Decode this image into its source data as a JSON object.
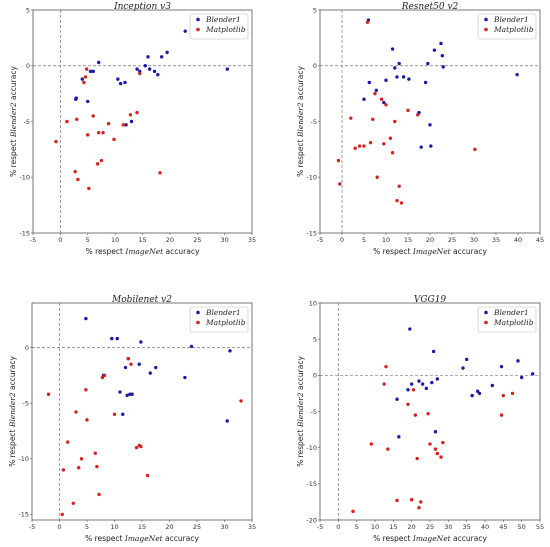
{
  "chart_data": [
    {
      "type": "scatter",
      "title": "Inception v3",
      "xlabel": [
        "% respect ",
        "ImageNet",
        " accuracy"
      ],
      "ylabel": [
        "% respect ",
        "Blender2",
        " accuracy"
      ],
      "xlim": [
        -5,
        35
      ],
      "ylim": [
        -15,
        5
      ],
      "xticks": [
        -5,
        0,
        5,
        10,
        15,
        20,
        25,
        30,
        35
      ],
      "yticks": [
        -15,
        -10,
        -5,
        0,
        5
      ],
      "guides": {
        "x": 0,
        "y": 0
      },
      "legend": "top-right",
      "series": [
        {
          "name": "Blender1",
          "color": "#1a1aa6",
          "points": [
            [
              2.8,
              -3.0
            ],
            [
              2.9,
              -2.9
            ],
            [
              4.0,
              -1.2
            ],
            [
              5.0,
              -3.2
            ],
            [
              5.5,
              -0.5
            ],
            [
              6.0,
              -0.5
            ],
            [
              7.0,
              0.3
            ],
            [
              10.5,
              -1.2
            ],
            [
              11.0,
              -1.6
            ],
            [
              11.8,
              -1.5
            ],
            [
              12.0,
              -5.3
            ],
            [
              13.0,
              -5.0
            ],
            [
              14.0,
              -0.3
            ],
            [
              14.5,
              -0.5
            ],
            [
              15.5,
              0.0
            ],
            [
              16.0,
              0.8
            ],
            [
              16.3,
              -0.3
            ],
            [
              17.2,
              -0.5
            ],
            [
              17.8,
              -0.8
            ],
            [
              18.5,
              0.8
            ],
            [
              19.5,
              1.2
            ],
            [
              22.8,
              3.1
            ],
            [
              30.5,
              -0.3
            ]
          ]
        },
        {
          "name": "Matplotlib",
          "color": "#d42020",
          "points": [
            [
              -0.8,
              -6.8
            ],
            [
              1.2,
              -5.0
            ],
            [
              2.7,
              -9.5
            ],
            [
              3.0,
              -4.8
            ],
            [
              3.2,
              -10.2
            ],
            [
              4.3,
              -1.5
            ],
            [
              4.6,
              -1.0
            ],
            [
              4.8,
              -0.3
            ],
            [
              5.0,
              -6.2
            ],
            [
              5.2,
              -11.0
            ],
            [
              6.0,
              -4.5
            ],
            [
              6.8,
              -8.8
            ],
            [
              7.0,
              -6.0
            ],
            [
              7.5,
              -8.5
            ],
            [
              7.8,
              -6.0
            ],
            [
              8.8,
              -5.2
            ],
            [
              9.8,
              -6.6
            ],
            [
              11.5,
              -5.3
            ],
            [
              12.8,
              -4.4
            ],
            [
              14.0,
              -4.2
            ],
            [
              14.5,
              -0.7
            ],
            [
              18.2,
              -9.6
            ]
          ]
        }
      ]
    },
    {
      "type": "scatter",
      "title": "Resnet50 v2",
      "xlabel": [
        "% respect ",
        "ImageNet",
        " accuracy"
      ],
      "ylabel": [
        "% respect ",
        "Blender2",
        " accuracy"
      ],
      "xlim": [
        -5,
        45
      ],
      "ylim": [
        -15,
        5
      ],
      "xticks": [
        -5,
        0,
        5,
        10,
        15,
        20,
        25,
        30,
        35,
        40,
        45
      ],
      "yticks": [
        -15,
        -10,
        -5,
        0,
        5
      ],
      "guides": {
        "x": 0,
        "y": 0
      },
      "legend": "top-right",
      "series": [
        {
          "name": "Blender1",
          "color": "#1a1aa6",
          "points": [
            [
              5.0,
              -3.0
            ],
            [
              6.0,
              4.1
            ],
            [
              6.2,
              -1.5
            ],
            [
              7.8,
              -2.2
            ],
            [
              9.5,
              -3.3
            ],
            [
              10.0,
              -1.3
            ],
            [
              11.5,
              1.5
            ],
            [
              12.0,
              -0.2
            ],
            [
              12.5,
              -1.0
            ],
            [
              13.0,
              0.2
            ],
            [
              14.0,
              -1.0
            ],
            [
              18.0,
              -7.3
            ],
            [
              19.0,
              -1.5
            ],
            [
              19.5,
              0.2
            ],
            [
              20.0,
              -5.3
            ],
            [
              20.2,
              -7.2
            ],
            [
              21.0,
              1.4
            ],
            [
              22.5,
              2.0
            ],
            [
              22.8,
              0.9
            ],
            [
              23.0,
              -0.1
            ],
            [
              39.8,
              -0.8
            ],
            [
              15.2,
              -1.2
            ],
            [
              17.5,
              -4.2
            ]
          ]
        },
        {
          "name": "Matplotlib",
          "color": "#d42020",
          "points": [
            [
              -0.8,
              -8.5
            ],
            [
              -0.5,
              -10.6
            ],
            [
              2.0,
              -4.7
            ],
            [
              3.0,
              -7.4
            ],
            [
              4.0,
              -7.2
            ],
            [
              5.0,
              -7.2
            ],
            [
              5.8,
              3.9
            ],
            [
              6.5,
              -6.9
            ],
            [
              7.0,
              -4.8
            ],
            [
              7.5,
              -2.5
            ],
            [
              8.0,
              -10.0
            ],
            [
              9.0,
              -3.0
            ],
            [
              9.5,
              -7.0
            ],
            [
              10.0,
              -3.5
            ],
            [
              11.0,
              -6.5
            ],
            [
              11.5,
              -7.8
            ],
            [
              12.0,
              -5.0
            ],
            [
              12.5,
              -12.1
            ],
            [
              13.0,
              -10.8
            ],
            [
              13.5,
              -12.3
            ],
            [
              15.0,
              -4.0
            ],
            [
              17.2,
              -4.4
            ],
            [
              30.2,
              -7.5
            ]
          ]
        }
      ]
    },
    {
      "type": "scatter",
      "title": "Mobilenet v2",
      "xlabel": [
        "% respect ",
        "ImageNet",
        " accuracy"
      ],
      "ylabel": [
        "% respect ",
        "Blender2",
        " accuracy"
      ],
      "xlim": [
        -5,
        35
      ],
      "ylim": [
        -15.5,
        4
      ],
      "xticks": [
        -5,
        0,
        5,
        10,
        15,
        20,
        25,
        30,
        35
      ],
      "yticks": [
        -15,
        -10,
        -5,
        0
      ],
      "guides": {
        "x": 0,
        "y": 0
      },
      "legend": "top-right",
      "series": [
        {
          "name": "Blender1",
          "color": "#1a1aa6",
          "points": [
            [
              4.8,
              2.6
            ],
            [
              9.5,
              0.8
            ],
            [
              10.5,
              0.8
            ],
            [
              11.0,
              -4.0
            ],
            [
              11.5,
              -6.0
            ],
            [
              12.0,
              -1.8
            ],
            [
              12.3,
              -4.3
            ],
            [
              12.5,
              -1.0
            ],
            [
              12.8,
              -4.2
            ],
            [
              13.2,
              -4.2
            ],
            [
              14.5,
              -1.5
            ],
            [
              14.8,
              0.5
            ],
            [
              16.5,
              -2.3
            ],
            [
              17.5,
              -1.8
            ],
            [
              22.8,
              -2.7
            ],
            [
              24.0,
              0.1
            ],
            [
              30.5,
              -6.6
            ],
            [
              31.0,
              -0.3
            ],
            [
              8.0,
              -2.5
            ]
          ]
        },
        {
          "name": "Matplotlib",
          "color": "#d42020",
          "points": [
            [
              -2.0,
              -4.2
            ],
            [
              0.5,
              -15.0
            ],
            [
              0.7,
              -11.0
            ],
            [
              1.5,
              -8.5
            ],
            [
              2.5,
              -14.0
            ],
            [
              3.0,
              -5.8
            ],
            [
              3.5,
              -10.8
            ],
            [
              4.0,
              -10.0
            ],
            [
              4.8,
              -3.8
            ],
            [
              5.0,
              -6.5
            ],
            [
              6.5,
              -9.5
            ],
            [
              6.8,
              -10.7
            ],
            [
              7.2,
              -13.2
            ],
            [
              7.8,
              -2.7
            ],
            [
              8.2,
              -2.5
            ],
            [
              10.0,
              -6.0
            ],
            [
              12.5,
              -1.0
            ],
            [
              13.0,
              -1.5
            ],
            [
              14.0,
              -9.0
            ],
            [
              14.5,
              -8.8
            ],
            [
              14.8,
              -8.9
            ],
            [
              16.0,
              -11.5
            ],
            [
              33.0,
              -4.8
            ]
          ]
        }
      ]
    },
    {
      "type": "scatter",
      "title": "VGG19",
      "xlabel": [
        "% respect ",
        "ImageNet",
        " accuracy"
      ],
      "ylabel": [
        "% respect ",
        "Blender2",
        " accuracy"
      ],
      "xlim": [
        -5,
        55
      ],
      "ylim": [
        -20,
        10
      ],
      "xticks": [
        -5,
        0,
        5,
        10,
        15,
        20,
        25,
        30,
        35,
        40,
        45,
        50,
        55
      ],
      "yticks": [
        -20,
        -15,
        -10,
        -5,
        0,
        5,
        10
      ],
      "guides": {
        "x": 0,
        "y": 0
      },
      "legend": "top-right",
      "series": [
        {
          "name": "Blender1",
          "color": "#1a1aa6",
          "points": [
            [
              16.0,
              -3.3
            ],
            [
              16.5,
              -8.5
            ],
            [
              19.0,
              -2.0
            ],
            [
              19.5,
              6.4
            ],
            [
              20.0,
              -1.2
            ],
            [
              22.0,
              -0.8
            ],
            [
              23.0,
              -1.2
            ],
            [
              24.0,
              -1.8
            ],
            [
              25.5,
              -1.0
            ],
            [
              26.0,
              3.3
            ],
            [
              27.0,
              -0.5
            ],
            [
              34.0,
              1.0
            ],
            [
              35.0,
              2.2
            ],
            [
              36.5,
              -2.8
            ],
            [
              38.0,
              -2.2
            ],
            [
              38.5,
              -2.5
            ],
            [
              42.0,
              -1.4
            ],
            [
              44.5,
              1.2
            ],
            [
              49.0,
              2.0
            ],
            [
              50.0,
              -0.3
            ],
            [
              53.0,
              0.2
            ],
            [
              26.5,
              -7.8
            ]
          ]
        },
        {
          "name": "Matplotlib",
          "color": "#d42020",
          "points": [
            [
              4.0,
              -18.8
            ],
            [
              9.0,
              -9.5
            ],
            [
              12.5,
              -1.2
            ],
            [
              13.0,
              1.2
            ],
            [
              13.5,
              -10.2
            ],
            [
              16.0,
              -17.3
            ],
            [
              19.0,
              -4.0
            ],
            [
              20.0,
              -17.2
            ],
            [
              21.0,
              -5.5
            ],
            [
              21.5,
              -11.5
            ],
            [
              22.0,
              -18.3
            ],
            [
              22.5,
              -17.5
            ],
            [
              24.5,
              -5.3
            ],
            [
              25.0,
              -9.5
            ],
            [
              26.5,
              -10.2
            ],
            [
              27.0,
              -10.8
            ],
            [
              28.0,
              -11.3
            ],
            [
              28.5,
              -9.3
            ],
            [
              44.5,
              -5.5
            ],
            [
              45.0,
              -2.8
            ],
            [
              47.5,
              -2.5
            ],
            [
              20.5,
              -2.0
            ]
          ]
        }
      ]
    }
  ]
}
